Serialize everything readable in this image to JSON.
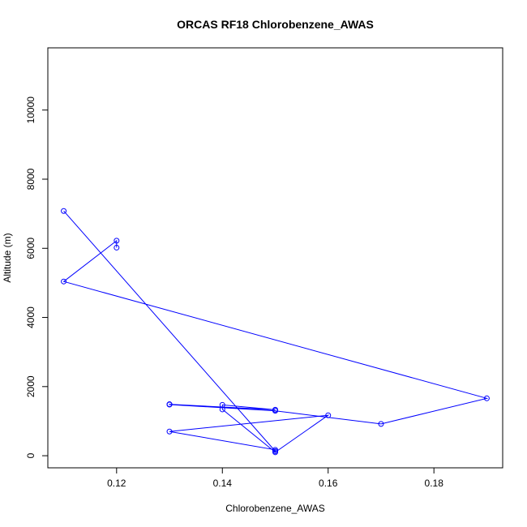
{
  "chart_data": {
    "type": "line",
    "title": "ORCAS RF18 Chlorobenzene_AWAS",
    "xlabel": "Chlorobenzene_AWAS",
    "ylabel": "Altitude (m)",
    "xlim": [
      0.107,
      0.193
    ],
    "ylim": [
      -350,
      11800
    ],
    "x_ticks": [
      0.12,
      0.14,
      0.16,
      0.18
    ],
    "x_tick_labels": [
      "0.12",
      "0.14",
      "0.16",
      "0.18"
    ],
    "y_ticks": [
      0,
      2000,
      4000,
      6000,
      8000,
      10000
    ],
    "y_tick_labels": [
      "0",
      "2000",
      "4000",
      "6000",
      "8000",
      "10000"
    ],
    "grid": false,
    "legend": "none",
    "series": [
      {
        "color": "#0000ff",
        "marker": "open-circle",
        "x": [
          0.11,
          0.15,
          0.15,
          0.13,
          0.16,
          0.15,
          0.14,
          0.14,
          0.15,
          0.13,
          0.13,
          0.15,
          0.17,
          0.19,
          0.11,
          0.12,
          0.12
        ],
        "y": [
          7080,
          130,
          170,
          700,
          1170,
          100,
          1340,
          1470,
          1330,
          1490,
          1480,
          1300,
          920,
          1660,
          5040,
          6220,
          6020
        ]
      }
    ]
  }
}
